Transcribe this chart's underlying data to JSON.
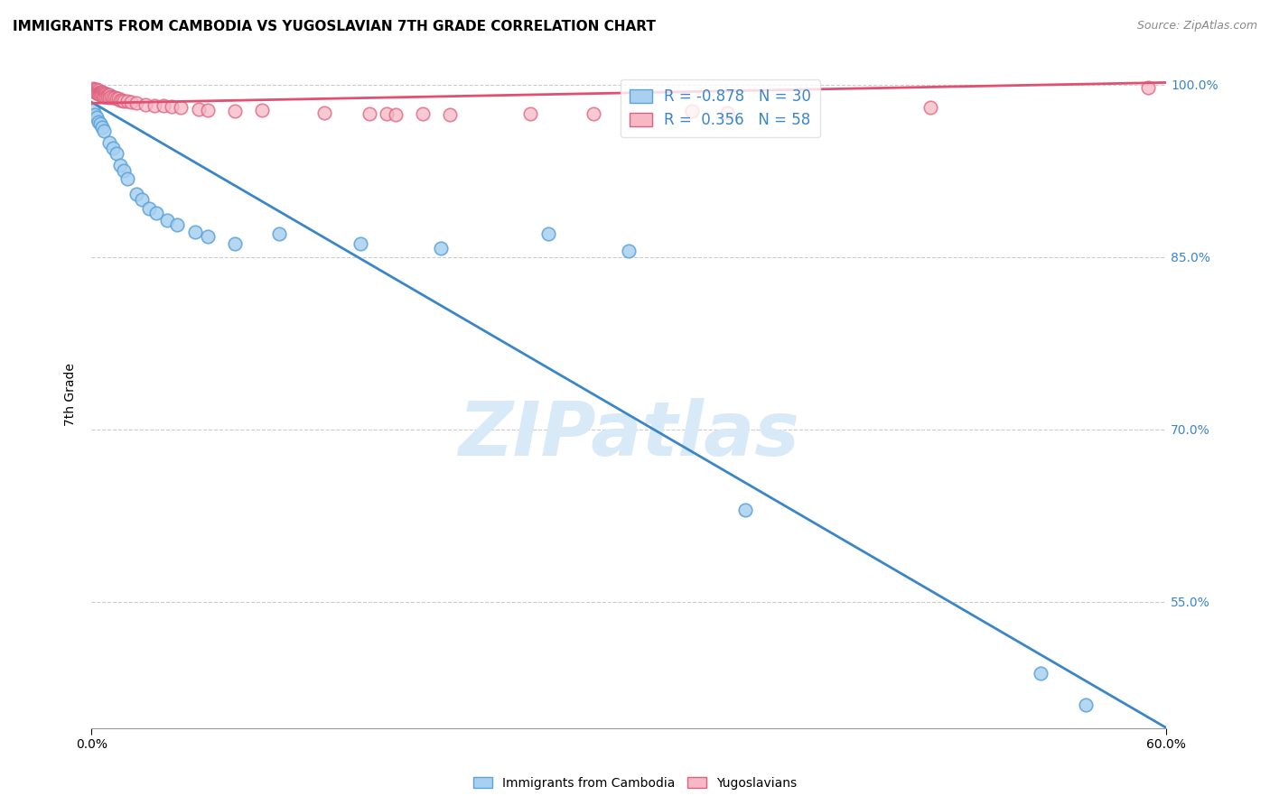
{
  "title": "IMMIGRANTS FROM CAMBODIA VS YUGOSLAVIAN 7TH GRADE CORRELATION CHART",
  "source": "Source: ZipAtlas.com",
  "ylabel": "7th Grade",
  "xlim": [
    0.0,
    0.6
  ],
  "ylim": [
    0.44,
    1.02
  ],
  "yticks": [
    0.55,
    0.7,
    0.85,
    1.0
  ],
  "ytick_labels": [
    "55.0%",
    "70.0%",
    "85.0%",
    "100.0%"
  ],
  "xtick_positions": [
    0.0,
    0.6
  ],
  "xtick_labels": [
    "0.0%",
    "60.0%"
  ],
  "cambodia_color": "#a8d0f0",
  "cambodia_edge": "#5ba3d9",
  "yugoslavian_color": "#f5b8c4",
  "yugoslavian_edge": "#e06080",
  "cambodia_R": -0.878,
  "cambodia_N": 30,
  "yugoslavian_R": 0.356,
  "yugoslavian_N": 58,
  "cambodia_points": [
    [
      0.001,
      0.978
    ],
    [
      0.002,
      0.974
    ],
    [
      0.003,
      0.972
    ],
    [
      0.004,
      0.968
    ],
    [
      0.005,
      0.966
    ],
    [
      0.006,
      0.963
    ],
    [
      0.007,
      0.96
    ],
    [
      0.01,
      0.95
    ],
    [
      0.012,
      0.945
    ],
    [
      0.014,
      0.94
    ],
    [
      0.016,
      0.93
    ],
    [
      0.018,
      0.925
    ],
    [
      0.02,
      0.918
    ],
    [
      0.025,
      0.905
    ],
    [
      0.028,
      0.9
    ],
    [
      0.032,
      0.892
    ],
    [
      0.036,
      0.888
    ],
    [
      0.042,
      0.882
    ],
    [
      0.048,
      0.878
    ],
    [
      0.058,
      0.872
    ],
    [
      0.065,
      0.868
    ],
    [
      0.08,
      0.862
    ],
    [
      0.105,
      0.87
    ],
    [
      0.15,
      0.862
    ],
    [
      0.195,
      0.858
    ],
    [
      0.255,
      0.87
    ],
    [
      0.3,
      0.855
    ],
    [
      0.365,
      0.63
    ],
    [
      0.53,
      0.488
    ],
    [
      0.555,
      0.46
    ]
  ],
  "yugoslavian_points": [
    [
      0.001,
      0.997
    ],
    [
      0.001,
      0.995
    ],
    [
      0.002,
      0.996
    ],
    [
      0.002,
      0.994
    ],
    [
      0.003,
      0.996
    ],
    [
      0.003,
      0.994
    ],
    [
      0.003,
      0.993
    ],
    [
      0.004,
      0.995
    ],
    [
      0.004,
      0.993
    ],
    [
      0.004,
      0.992
    ],
    [
      0.005,
      0.994
    ],
    [
      0.005,
      0.993
    ],
    [
      0.005,
      0.992
    ],
    [
      0.005,
      0.991
    ],
    [
      0.006,
      0.994
    ],
    [
      0.006,
      0.992
    ],
    [
      0.006,
      0.991
    ],
    [
      0.007,
      0.993
    ],
    [
      0.007,
      0.991
    ],
    [
      0.007,
      0.99
    ],
    [
      0.008,
      0.992
    ],
    [
      0.008,
      0.99
    ],
    [
      0.009,
      0.991
    ],
    [
      0.009,
      0.99
    ],
    [
      0.01,
      0.991
    ],
    [
      0.01,
      0.989
    ],
    [
      0.011,
      0.99
    ],
    [
      0.012,
      0.989
    ],
    [
      0.013,
      0.989
    ],
    [
      0.014,
      0.988
    ],
    [
      0.015,
      0.988
    ],
    [
      0.016,
      0.987
    ],
    [
      0.017,
      0.987
    ],
    [
      0.018,
      0.986
    ],
    [
      0.02,
      0.986
    ],
    [
      0.022,
      0.985
    ],
    [
      0.025,
      0.984
    ],
    [
      0.03,
      0.983
    ],
    [
      0.035,
      0.982
    ],
    [
      0.04,
      0.982
    ],
    [
      0.045,
      0.981
    ],
    [
      0.05,
      0.98
    ],
    [
      0.06,
      0.979
    ],
    [
      0.065,
      0.978
    ],
    [
      0.08,
      0.977
    ],
    [
      0.095,
      0.978
    ],
    [
      0.13,
      0.976
    ],
    [
      0.155,
      0.975
    ],
    [
      0.165,
      0.975
    ],
    [
      0.17,
      0.974
    ],
    [
      0.185,
      0.975
    ],
    [
      0.2,
      0.974
    ],
    [
      0.245,
      0.975
    ],
    [
      0.28,
      0.975
    ],
    [
      0.335,
      0.977
    ],
    [
      0.355,
      0.976
    ],
    [
      0.468,
      0.98
    ],
    [
      0.59,
      0.998
    ]
  ],
  "cambodia_line_color": "#3a86c8",
  "yugoslavian_line_color": "#e05070",
  "watermark_text": "ZIPatlas",
  "watermark_color": "#d8eaf8",
  "legend_text_color": "#3a86c8",
  "legend_cambodia_label": "R = -0.878   N = 30",
  "legend_yugoslavian_label": "R =  0.356   N = 58",
  "bottom_legend_cambodia": "Immigrants from Cambodia",
  "bottom_legend_yugoslavian": "Yugoslavians",
  "title_fontsize": 11,
  "source_fontsize": 9,
  "ytick_fontsize": 10,
  "xtick_fontsize": 10
}
